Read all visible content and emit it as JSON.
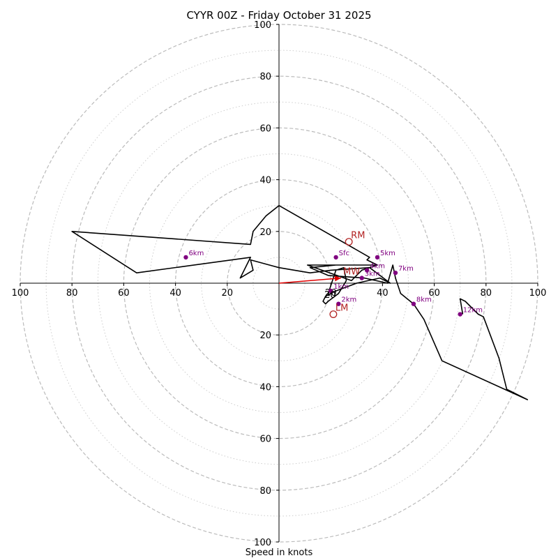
{
  "chart_data": {
    "type": "hodograph",
    "title": "CYYR 00Z - Friday October 31 2025",
    "xlabel": "Speed in knots",
    "rmax": 100,
    "ring_major": [
      20,
      40,
      60,
      80,
      100
    ],
    "ring_minor": [
      10,
      30,
      50,
      70,
      90
    ],
    "x_ticks": [
      "100",
      "80",
      "60",
      "40",
      "20",
      "20",
      "40",
      "60",
      "80",
      "100"
    ],
    "y_ticks": [
      "100",
      "80",
      "60",
      "40",
      "20",
      "20",
      "40",
      "60",
      "80",
      "100"
    ],
    "hodograph": [
      [
        19,
        -4
      ],
      [
        20,
        -1
      ],
      [
        22,
        5
      ],
      [
        25,
        6
      ],
      [
        26,
        1
      ],
      [
        23,
        -4
      ],
      [
        19,
        -7
      ],
      [
        18,
        -8
      ],
      [
        17,
        -7
      ],
      [
        18,
        -5
      ],
      [
        22,
        -3
      ],
      [
        30,
        0
      ],
      [
        39,
        2
      ],
      [
        43,
        0
      ],
      [
        35,
        6
      ],
      [
        20,
        5
      ],
      [
        12,
        4
      ],
      [
        0,
        6
      ],
      [
        -11,
        9
      ],
      [
        -10,
        5
      ],
      [
        -15,
        2
      ],
      [
        -11,
        10
      ],
      [
        -55,
        4
      ],
      [
        -80,
        20
      ],
      [
        -11,
        15
      ],
      [
        -10,
        20
      ],
      [
        -5,
        26
      ],
      [
        0,
        30
      ],
      [
        35,
        10
      ],
      [
        34,
        9
      ],
      [
        38,
        7
      ],
      [
        32,
        5
      ],
      [
        28,
        1
      ],
      [
        11,
        7
      ],
      [
        38,
        7
      ],
      [
        22,
        7
      ],
      [
        12,
        6
      ],
      [
        19,
        3
      ],
      [
        33,
        2
      ],
      [
        42,
        0
      ],
      [
        44,
        7
      ],
      [
        45,
        2
      ],
      [
        47,
        -4
      ],
      [
        52,
        -8
      ],
      [
        56,
        -14
      ],
      [
        63,
        -30
      ],
      [
        96,
        -45
      ],
      [
        88,
        -41
      ],
      [
        85,
        -29
      ],
      [
        79,
        -13
      ],
      [
        77,
        -12
      ],
      [
        72,
        -7
      ],
      [
        70,
        -6
      ],
      [
        71,
        -12
      ]
    ],
    "height_markers": [
      {
        "label": "Sfc",
        "u": 22,
        "v": 10
      },
      {
        "label": "1km",
        "u": 20,
        "v": -3
      },
      {
        "label": "2km",
        "u": 23,
        "v": -8
      },
      {
        "label": "3km",
        "u": 32,
        "v": 2
      },
      {
        "label": "4km",
        "u": 34,
        "v": 5
      },
      {
        "label": "5km",
        "u": 38,
        "v": 10
      },
      {
        "label": "6km",
        "u": -36,
        "v": 10
      },
      {
        "label": "7km",
        "u": 45,
        "v": 4
      },
      {
        "label": "8km",
        "u": 52,
        "v": -8
      },
      {
        "label": "12km",
        "u": 70,
        "v": -12
      }
    ],
    "storm_motion": [
      {
        "label": "RM",
        "u": 27,
        "v": 16
      },
      {
        "label": "LM",
        "u": 21,
        "v": -12
      },
      {
        "label": "MW",
        "u": 24,
        "v": 2
      }
    ],
    "annotation": "20",
    "shear_vector": {
      "u": 24,
      "v": 2
    },
    "colors": {
      "trace": "#000000",
      "marker": "#800080",
      "storm": "#b22222",
      "shear": "#e00000",
      "ring_major": "#bbbbbb",
      "ring_minor": "#cccccc"
    }
  }
}
